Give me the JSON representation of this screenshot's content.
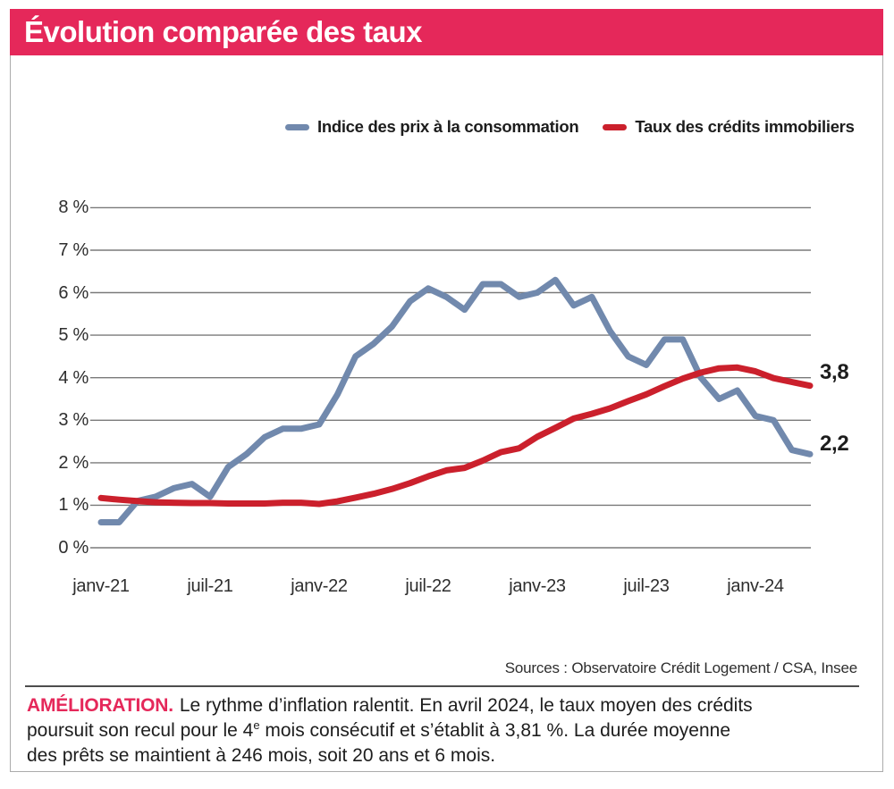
{
  "header": {
    "title": "Évolution comparée des taux"
  },
  "chart_data": {
    "type": "line",
    "title": "Évolution comparée des taux",
    "x_unit": "month",
    "months": [
      "janv-21",
      "févr-21",
      "mars-21",
      "avr-21",
      "mai-21",
      "juin-21",
      "juil-21",
      "août-21",
      "sept-21",
      "oct-21",
      "nov-21",
      "déc-21",
      "janv-22",
      "févr-22",
      "mars-22",
      "avr-22",
      "mai-22",
      "juin-22",
      "juil-22",
      "août-22",
      "sept-22",
      "oct-22",
      "nov-22",
      "déc-22",
      "janv-23",
      "févr-23",
      "mars-23",
      "avr-23",
      "mai-23",
      "juin-23",
      "juil-23",
      "août-23",
      "sept-23",
      "oct-23",
      "nov-23",
      "déc-23",
      "janv-24",
      "févr-24",
      "mars-24",
      "avr-24"
    ],
    "x_ticks": [
      {
        "m": 0,
        "label": "janv-21"
      },
      {
        "m": 6,
        "label": "juil-21"
      },
      {
        "m": 12,
        "label": "janv-22"
      },
      {
        "m": 18,
        "label": "juil-22"
      },
      {
        "m": 24,
        "label": "janv-23"
      },
      {
        "m": 30,
        "label": "juil-23"
      },
      {
        "m": 36,
        "label": "janv-24"
      }
    ],
    "y_ticks": [
      8,
      7,
      6,
      5,
      4,
      3,
      2,
      1,
      0
    ],
    "y_tick_suffix": " %",
    "ylim": [
      0,
      8
    ],
    "grid": "horizontal",
    "legend_position": "top",
    "series": [
      {
        "name": "Indice des prix à la consommation",
        "color": "#7189AD",
        "end_label": "2,2",
        "values": [
          0.6,
          0.6,
          1.1,
          1.2,
          1.4,
          1.5,
          1.2,
          1.9,
          2.2,
          2.6,
          2.8,
          2.8,
          2.9,
          3.6,
          4.5,
          4.8,
          5.2,
          5.8,
          6.1,
          5.9,
          5.6,
          6.2,
          6.2,
          5.9,
          6.0,
          6.3,
          5.7,
          5.9,
          5.1,
          4.5,
          4.3,
          4.9,
          4.9,
          4.0,
          3.5,
          3.7,
          3.1,
          3.0,
          2.3,
          2.2
        ]
      },
      {
        "name": "Taux des crédits immobiliers",
        "color": "#CB202C",
        "end_label": "3,8",
        "values": [
          1.17,
          1.13,
          1.1,
          1.07,
          1.06,
          1.05,
          1.05,
          1.04,
          1.04,
          1.04,
          1.06,
          1.06,
          1.03,
          1.09,
          1.18,
          1.27,
          1.38,
          1.52,
          1.68,
          1.82,
          1.88,
          2.05,
          2.25,
          2.34,
          2.61,
          2.82,
          3.04,
          3.15,
          3.28,
          3.45,
          3.61,
          3.8,
          3.98,
          4.12,
          4.22,
          4.24,
          4.15,
          3.99,
          3.9,
          3.81
        ]
      }
    ]
  },
  "sources": "Sources : Observatoire Crédit Logement / CSA, Insee",
  "caption": {
    "label": "AMÉLIORATION.",
    "line1": "Le rythme d’inflation ralentit. En avril 2024, le taux moyen des crédits",
    "line2_pre": "poursuit son recul pour le 4",
    "line2_sup": "e",
    "line2_post": " mois consécutif et s’établit à 3,81 %. La durée moyenne",
    "line3": "des prêts se maintient à 246 mois, soit 20 ans et 6 mois."
  },
  "colors": {
    "accent_pink": "#E5285A",
    "cpi_blue": "#7189AD",
    "credit_red": "#CB202C",
    "gridline": "#7A7A7A"
  }
}
